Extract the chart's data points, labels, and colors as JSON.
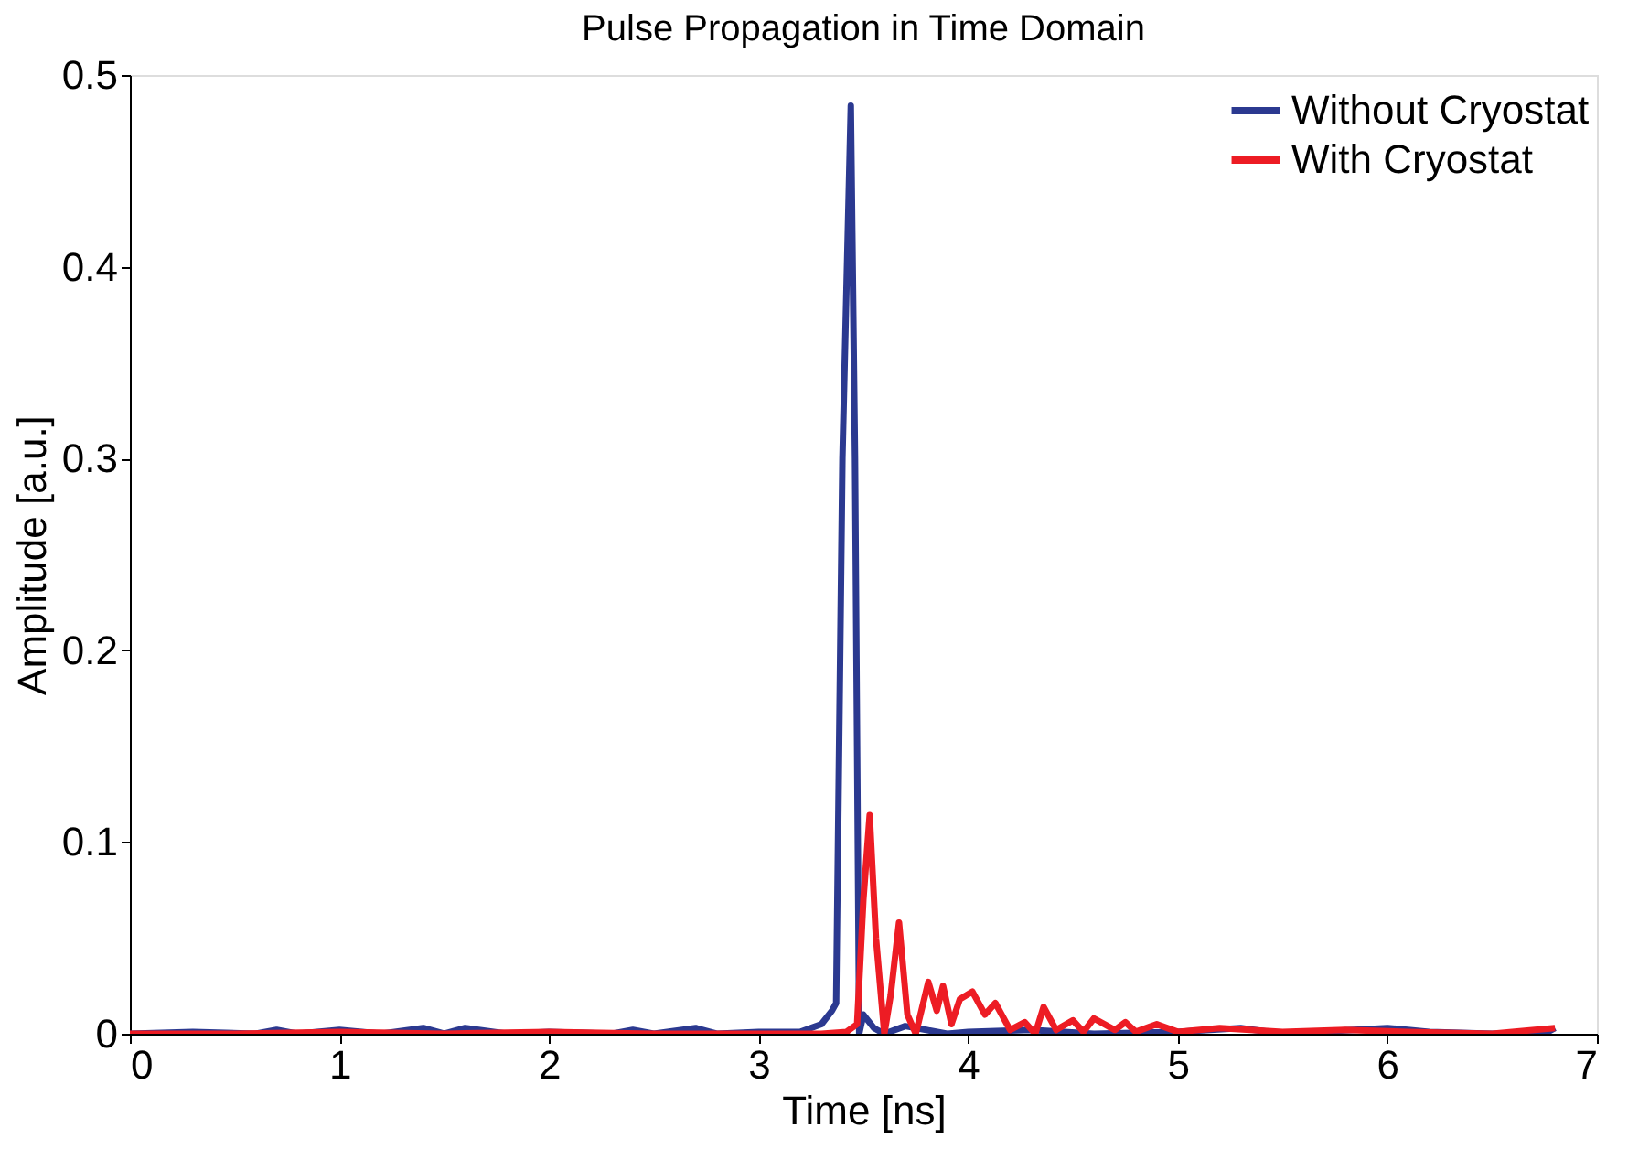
{
  "chart_data": {
    "type": "line",
    "title": "Pulse Propagation in Time Domain",
    "xlabel": "Time [ns]",
    "ylabel": "Amplitude [a.u.]",
    "xlim": [
      0,
      7
    ],
    "xticks": [
      0,
      1,
      2,
      3,
      4,
      5,
      6,
      7
    ],
    "ylim": [
      0,
      0.5
    ],
    "yticks": [
      0,
      0.1,
      0.2,
      0.3,
      0.4,
      0.5
    ],
    "grid": false,
    "legend": "top right",
    "line_style": "solid",
    "marker": "none",
    "series": [
      {
        "name": "Without Cryostat",
        "color": "#2b3990",
        "x": [
          0,
          0.3,
          0.6,
          0.7,
          0.8,
          1.0,
          1.2,
          1.4,
          1.5,
          1.6,
          1.8,
          2.0,
          2.3,
          2.4,
          2.5,
          2.7,
          2.8,
          3.0,
          3.2,
          3.3,
          3.35,
          3.37,
          3.4,
          3.44,
          3.46,
          3.48,
          3.5,
          3.55,
          3.6,
          3.7,
          3.8,
          3.9,
          4.0,
          4.3,
          4.6,
          5.0,
          5.3,
          5.5,
          6.0,
          6.2,
          6.5,
          6.75,
          6.8
        ],
        "values": [
          0.0,
          0.001,
          0.0,
          0.002,
          0.0,
          0.002,
          0.0,
          0.003,
          0.0,
          0.003,
          0.0,
          0.001,
          0.0,
          0.002,
          0.0,
          0.003,
          0.0,
          0.001,
          0.001,
          0.005,
          0.012,
          0.016,
          0.3,
          0.484,
          0.3,
          0.0,
          0.01,
          0.003,
          0.0,
          0.004,
          0.002,
          0.0,
          0.001,
          0.002,
          0.0,
          0.001,
          0.003,
          0.0,
          0.003,
          0.001,
          0.0,
          0.0,
          0.003
        ]
      },
      {
        "name": "With Cryostat",
        "color": "#ed1c24",
        "x": [
          0,
          0.5,
          1.0,
          1.5,
          2.0,
          2.5,
          3.0,
          3.3,
          3.42,
          3.47,
          3.5,
          3.53,
          3.56,
          3.6,
          3.63,
          3.67,
          3.71,
          3.75,
          3.81,
          3.85,
          3.88,
          3.92,
          3.96,
          4.02,
          4.08,
          4.13,
          4.2,
          4.27,
          4.32,
          4.36,
          4.42,
          4.5,
          4.55,
          4.6,
          4.7,
          4.75,
          4.8,
          4.9,
          5.0,
          5.2,
          5.5,
          5.8,
          6.1,
          6.5,
          6.8
        ],
        "values": [
          0.0,
          0.0,
          0.001,
          0.0,
          0.001,
          0.0,
          0.0,
          0.0,
          0.001,
          0.005,
          0.07,
          0.114,
          0.05,
          0.0,
          0.02,
          0.058,
          0.01,
          0.0,
          0.027,
          0.012,
          0.025,
          0.005,
          0.018,
          0.022,
          0.01,
          0.016,
          0.002,
          0.006,
          0.0,
          0.014,
          0.002,
          0.007,
          0.001,
          0.008,
          0.002,
          0.006,
          0.001,
          0.005,
          0.001,
          0.003,
          0.001,
          0.002,
          0.001,
          0.0,
          0.003
        ]
      }
    ]
  }
}
